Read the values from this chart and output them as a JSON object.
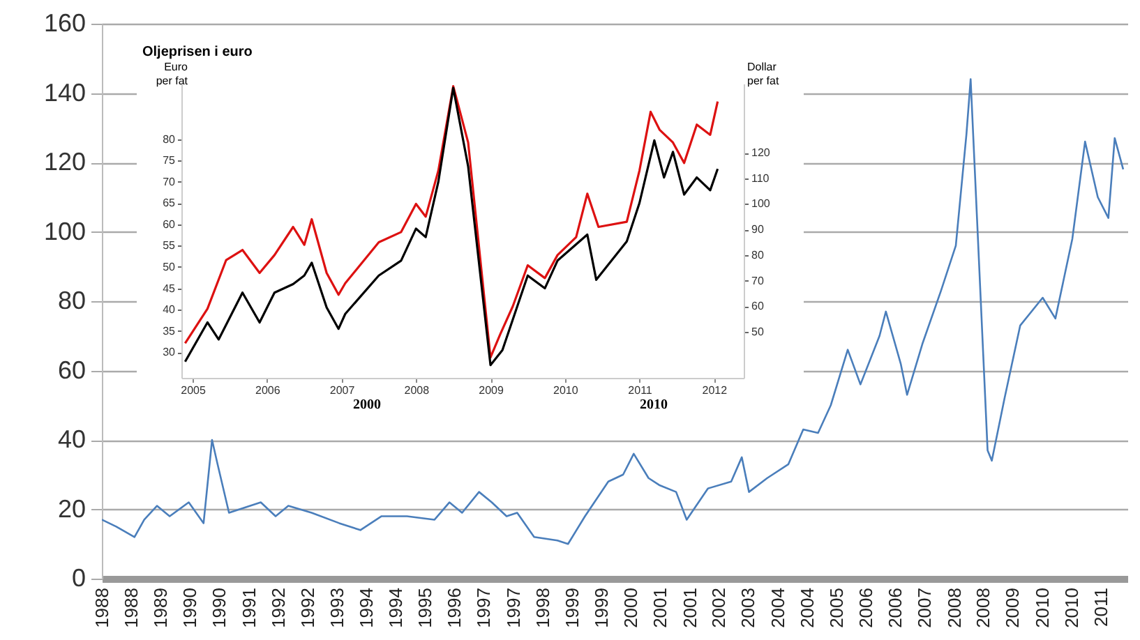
{
  "chart_data": [
    {
      "type": "line",
      "color": "#4a7ebb",
      "grid": "y",
      "xlim": [
        1987.56,
        2011.76
      ],
      "ylim": [
        0,
        160
      ],
      "yticks": [
        0,
        20,
        40,
        60,
        80,
        100,
        120,
        140,
        160
      ],
      "xticks": [
        {
          "value": 1987.56,
          "label": "1988"
        },
        {
          "value": 1988.25,
          "label": "1988"
        },
        {
          "value": 1988.95,
          "label": "1989"
        },
        {
          "value": 1989.64,
          "label": "1990"
        },
        {
          "value": 1990.33,
          "label": "1990"
        },
        {
          "value": 1991.03,
          "label": "1991"
        },
        {
          "value": 1991.72,
          "label": "1992"
        },
        {
          "value": 1992.41,
          "label": "1992"
        },
        {
          "value": 1993.11,
          "label": "1993"
        },
        {
          "value": 1993.8,
          "label": "1994"
        },
        {
          "value": 1994.49,
          "label": "1994"
        },
        {
          "value": 1995.19,
          "label": "1995"
        },
        {
          "value": 1995.88,
          "label": "1996"
        },
        {
          "value": 1996.57,
          "label": "1997"
        },
        {
          "value": 1997.27,
          "label": "1997"
        },
        {
          "value": 1997.96,
          "label": "1998"
        },
        {
          "value": 1998.65,
          "label": "1999"
        },
        {
          "value": 1999.35,
          "label": "1999"
        },
        {
          "value": 2000.04,
          "label": "2000"
        },
        {
          "value": 2000.73,
          "label": "2001"
        },
        {
          "value": 2001.43,
          "label": "2001"
        },
        {
          "value": 2002.12,
          "label": "2002"
        },
        {
          "value": 2002.81,
          "label": "2003"
        },
        {
          "value": 2003.51,
          "label": "2004"
        },
        {
          "value": 2004.2,
          "label": "2004"
        },
        {
          "value": 2004.89,
          "label": "2005"
        },
        {
          "value": 2005.59,
          "label": "2006"
        },
        {
          "value": 2006.28,
          "label": "2006"
        },
        {
          "value": 2006.97,
          "label": "2007"
        },
        {
          "value": 2007.67,
          "label": "2008"
        },
        {
          "value": 2008.36,
          "label": "2008"
        },
        {
          "value": 2009.05,
          "label": "2009"
        },
        {
          "value": 2009.75,
          "label": "2010"
        },
        {
          "value": 2010.44,
          "label": "2010"
        },
        {
          "value": 2011.13,
          "label": "2011"
        }
      ],
      "x": [
        1987.56,
        1987.9,
        1988.33,
        1988.56,
        1988.86,
        1989.16,
        1989.61,
        1989.96,
        1990.16,
        1990.29,
        1990.56,
        1991.31,
        1991.66,
        1991.96,
        1992.51,
        1993.16,
        1993.66,
        1994.16,
        1994.76,
        1995.41,
        1995.76,
        1996.06,
        1996.46,
        1996.76,
        1997.11,
        1997.36,
        1997.76,
        1998.31,
        1998.56,
        1998.96,
        1999.51,
        1999.86,
        2000.11,
        2000.46,
        2000.71,
        2001.11,
        2001.36,
        2001.86,
        2002.41,
        2002.66,
        2002.83,
        2003.26,
        2003.76,
        2004.11,
        2004.46,
        2004.76,
        2005.16,
        2005.46,
        2005.91,
        2006.06,
        2006.41,
        2006.56,
        2006.93,
        2007.36,
        2007.71,
        2007.96,
        2008.06,
        2008.21,
        2008.46,
        2008.56,
        2008.86,
        2009.23,
        2009.76,
        2010.06,
        2010.46,
        2010.76,
        2011.06,
        2011.31,
        2011.46,
        2011.66
      ],
      "values": [
        17,
        15,
        12,
        17,
        21,
        18,
        22,
        16,
        40,
        33,
        19,
        22,
        18,
        21,
        19,
        16,
        14,
        18,
        18,
        17,
        22,
        19,
        25,
        22,
        18,
        19,
        12,
        11,
        10,
        18,
        28,
        30,
        36,
        29,
        27,
        25,
        17,
        26,
        28,
        35,
        25,
        29,
        33,
        43,
        42,
        50,
        66,
        56,
        70,
        77,
        62,
        53,
        68,
        83,
        96,
        128,
        144,
        104,
        37,
        34,
        52,
        73,
        81,
        75,
        98,
        126,
        110,
        104,
        127,
        118
      ]
    },
    {
      "type": "line",
      "title": "Oljeprisen i euro",
      "ylabel": "Euro per fat",
      "y2label": "Dollar per fat",
      "xlim": [
        2004.85,
        2012.4
      ],
      "xticks": [
        2005,
        2006,
        2007,
        2008,
        2009,
        2010,
        2011,
        2012
      ],
      "ylim": [
        24,
        93
      ],
      "yticks": [
        30,
        35,
        40,
        45,
        50,
        55,
        60,
        65,
        70,
        75,
        80
      ],
      "y2lim": [
        32,
        147
      ],
      "y2ticks": [
        50,
        60,
        70,
        80,
        90,
        100,
        110,
        120
      ],
      "annotations": [
        "2000",
        "2010"
      ],
      "series": [
        {
          "color": "#dd1111",
          "axis": "y2",
          "x": [
            2004.9,
            2005.2,
            2005.45,
            2005.67,
            2005.9,
            2006.1,
            2006.35,
            2006.5,
            2006.6,
            2006.8,
            2006.96,
            2007.05,
            2007.5,
            2007.8,
            2008.0,
            2008.13,
            2008.3,
            2008.5,
            2008.7,
            2009.0,
            2009.13,
            2009.3,
            2009.5,
            2009.73,
            2009.9,
            2010.15,
            2010.3,
            2010.45,
            2010.83,
            2011.0,
            2011.15,
            2011.27,
            2011.45,
            2011.6,
            2011.77,
            2011.95,
            2012.05
          ],
          "values": [
            45.5,
            59,
            78,
            82,
            73,
            80,
            91,
            84,
            94,
            73,
            64.5,
            69,
            85,
            89,
            100,
            95,
            113,
            146,
            124,
            40,
            49,
            60,
            76,
            71,
            80,
            87,
            104,
            91,
            93,
            113,
            136,
            129,
            124,
            116,
            131,
            127,
            140
          ]
        },
        {
          "color": "#000000",
          "x": [
            2004.9,
            2005.2,
            2005.35,
            2005.67,
            2005.9,
            2006.1,
            2006.35,
            2006.5,
            2006.6,
            2006.8,
            2006.96,
            2007.05,
            2007.5,
            2007.8,
            2008.0,
            2008.13,
            2008.3,
            2008.5,
            2008.7,
            2009.0,
            2009.16,
            2009.5,
            2009.73,
            2009.9,
            2010.3,
            2010.42,
            2010.83,
            2011.0,
            2011.2,
            2011.33,
            2011.45,
            2011.6,
            2011.77,
            2011.95,
            2012.05
          ],
          "values": [
            27.8,
            37,
            33,
            44,
            37,
            44,
            46,
            48,
            51,
            40.5,
            35.5,
            39,
            48,
            51.5,
            59,
            57,
            70,
            92,
            73.6,
            27,
            30.5,
            48,
            45,
            51.5,
            57.6,
            47,
            56,
            65,
            79.7,
            71,
            77,
            67,
            71,
            68,
            73
          ]
        }
      ]
    }
  ]
}
